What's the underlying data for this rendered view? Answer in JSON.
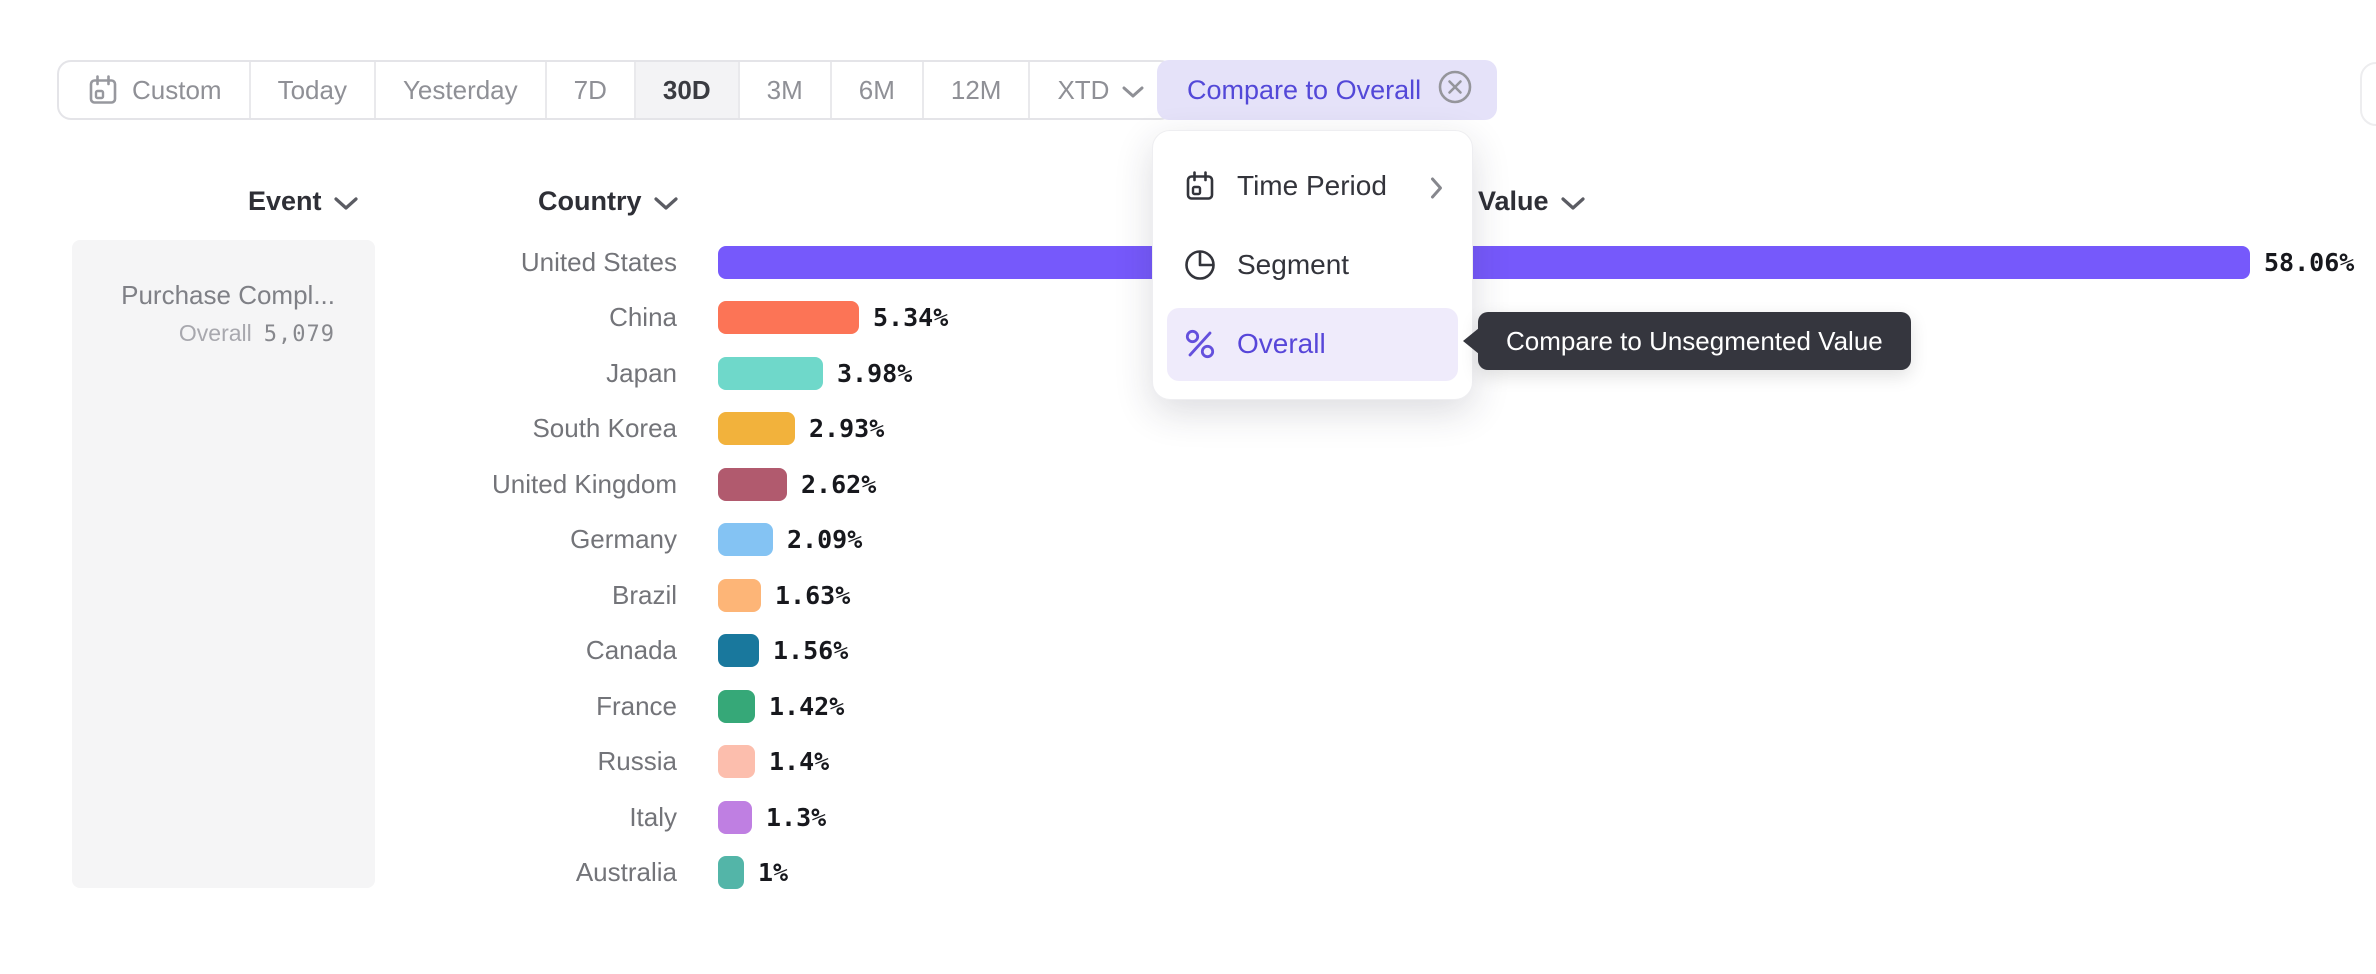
{
  "toolbar": {
    "buttons": [
      {
        "label": "Custom",
        "icon": "calendar-icon"
      },
      {
        "label": "Today"
      },
      {
        "label": "Yesterday"
      },
      {
        "label": "7D"
      },
      {
        "label": "30D"
      },
      {
        "label": "3M"
      },
      {
        "label": "6M"
      },
      {
        "label": "12M"
      },
      {
        "label": "XTD",
        "icon_right": "chevron-down-icon"
      }
    ],
    "active_button": "30D",
    "compare_chip": {
      "label": "Compare to Overall",
      "close_icon": "circle-x-icon",
      "bg_color": "#e5e2f9",
      "text_color": "#5348d8"
    }
  },
  "columns": {
    "event": "Event",
    "country": "Country",
    "value": "Value"
  },
  "event_card": {
    "title": "Purchase Compl...",
    "overall_label": "Overall",
    "overall_value": "5,079"
  },
  "menu": {
    "items": [
      {
        "label": "Time Period",
        "icon": "calendar-icon",
        "trailing_icon": "chevron-right-icon",
        "selected": false
      },
      {
        "label": "Segment",
        "icon": "segment-icon",
        "selected": false
      },
      {
        "label": "Overall",
        "icon": "percent-icon",
        "selected": true
      }
    ],
    "selected_bg": "#efebfb",
    "selected_text_color": "#5746d9"
  },
  "tooltip": {
    "text": "Compare to Unsegmented Value",
    "bg_color": "#35363e"
  },
  "chart_data": {
    "type": "bar",
    "orientation": "horizontal",
    "categories": [
      "United States",
      "China",
      "Japan",
      "South Korea",
      "United Kingdom",
      "Germany",
      "Brazil",
      "Canada",
      "France",
      "Russia",
      "Italy",
      "Australia"
    ],
    "values": [
      58.06,
      5.34,
      3.98,
      2.93,
      2.62,
      2.09,
      1.63,
      1.56,
      1.42,
      1.4,
      1.3,
      1
    ],
    "value_labels": [
      "58.06%",
      "5.34%",
      "3.98%",
      "2.93%",
      "2.62%",
      "2.09%",
      "1.63%",
      "1.56%",
      "1.42%",
      "1.4%",
      "1.3%",
      "1%"
    ],
    "bar_colors": [
      "#7659fb",
      "#fc7456",
      "#6fd8ca",
      "#f2b23c",
      "#b15a6e",
      "#84c3f3",
      "#fdb577",
      "#19789d",
      "#36a878",
      "#fcbead",
      "#bf7fe2",
      "#53b5a8"
    ],
    "xlabel": "Value",
    "ylabel": "Country",
    "xlim": [
      0,
      60
    ],
    "grid": false,
    "legend": false
  }
}
